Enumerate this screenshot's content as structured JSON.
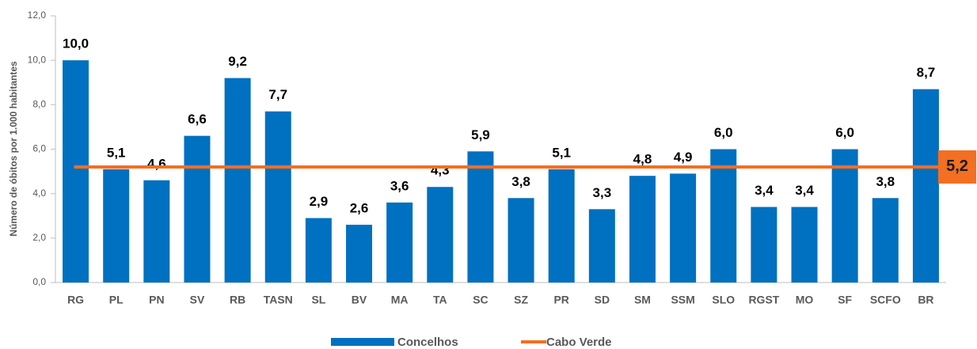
{
  "chart_data": {
    "type": "bar",
    "y_label": "Número de óbitos por 1.000 habitantes",
    "categories": [
      "RG",
      "PL",
      "PN",
      "SV",
      "RB",
      "TASN",
      "SL",
      "BV",
      "MA",
      "TA",
      "SC",
      "SZ",
      "PR",
      "SD",
      "SM",
      "SSM",
      "SLO",
      "RGST",
      "MO",
      "SF",
      "SCFO",
      "BR"
    ],
    "series": [
      {
        "name": "Concelhos",
        "color": "#0070c0",
        "values": [
          10.0,
          5.1,
          4.6,
          6.6,
          9.2,
          7.7,
          2.9,
          2.6,
          3.6,
          4.3,
          5.9,
          3.8,
          5.1,
          3.3,
          4.8,
          4.9,
          6.0,
          3.4,
          3.4,
          6.0,
          3.8,
          8.7
        ],
        "value_labels": [
          "10,0",
          "5,1",
          "4,6",
          "6,6",
          "9,2",
          "7,7",
          "2,9",
          "2,6",
          "3,6",
          "4,3",
          "5,9",
          "3,8",
          "5,1",
          "3,3",
          "4,8",
          "4,9",
          "6,0",
          "3,4",
          "3,4",
          "6,0",
          "3,8",
          "8,7"
        ]
      }
    ],
    "reference": {
      "name": "Cabo Verde",
      "color": "#f36f21",
      "value": 5.2,
      "value_label": "5,2"
    },
    "ylim": [
      0,
      12
    ],
    "yticks": [
      {
        "value": 0,
        "label": "0,0"
      },
      {
        "value": 2,
        "label": "2,0"
      },
      {
        "value": 4,
        "label": "4,0"
      },
      {
        "value": 6,
        "label": "6,0"
      },
      {
        "value": 8,
        "label": "8,0"
      },
      {
        "value": 10,
        "label": "10,0"
      },
      {
        "value": 12,
        "label": "12,0"
      }
    ]
  }
}
